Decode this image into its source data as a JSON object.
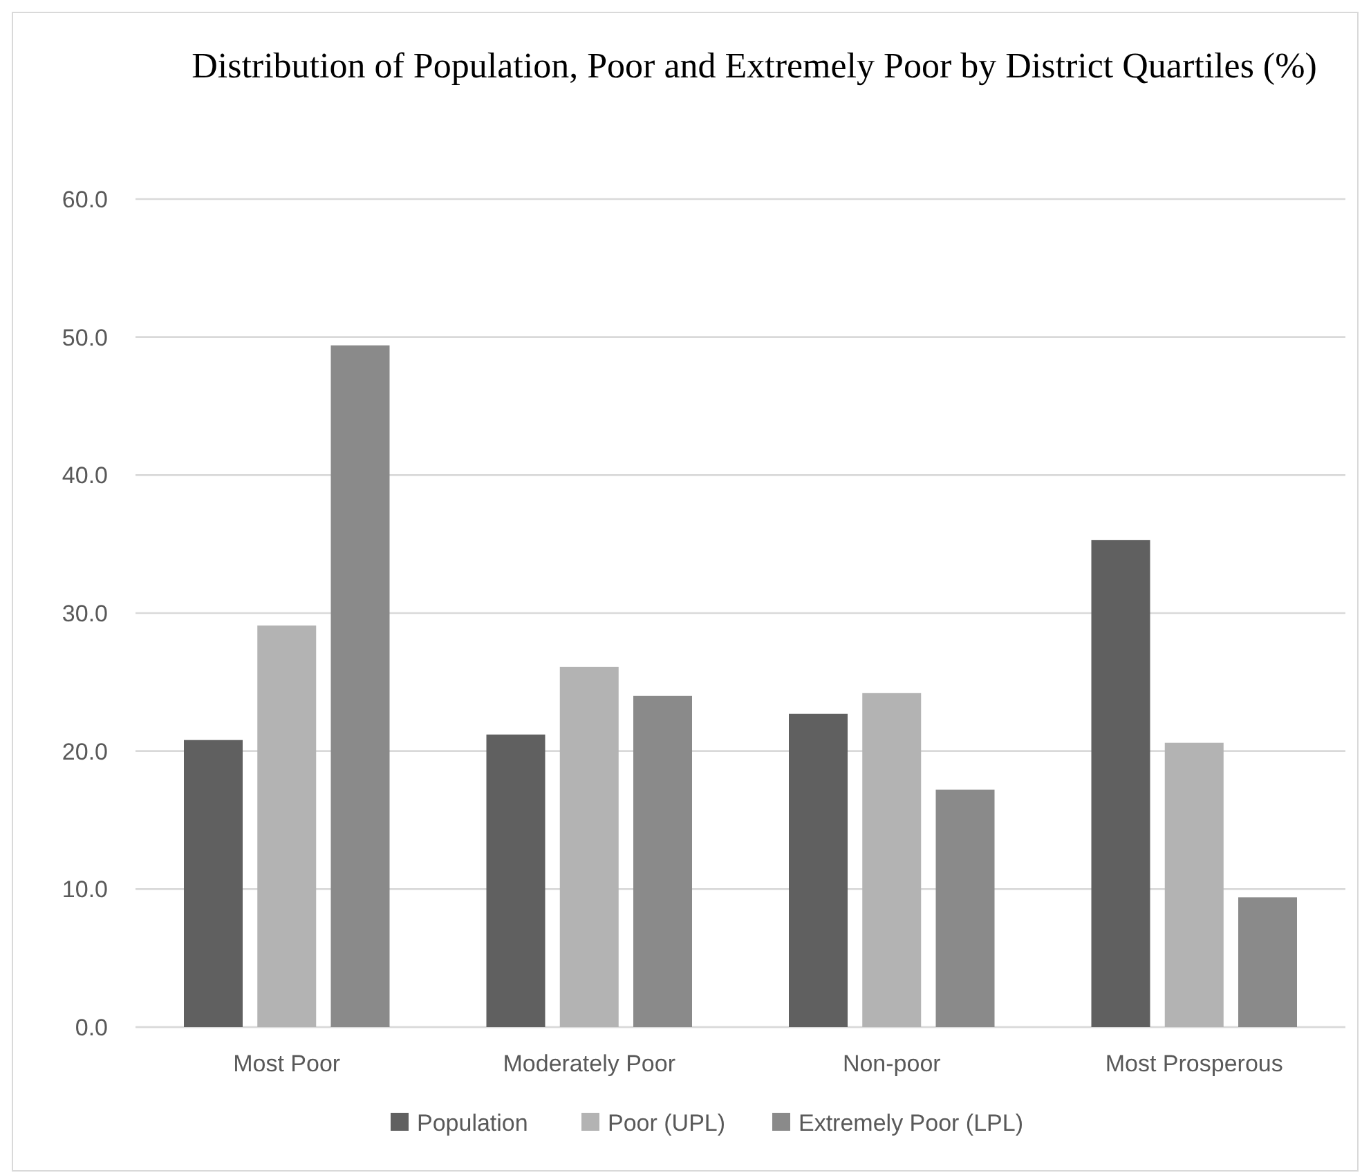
{
  "chart_data": {
    "type": "bar",
    "title": "Distribution of Population, Poor and Extremely Poor by District Quartiles (%)",
    "categories": [
      "Most Poor",
      "Moderately Poor",
      "Non-poor",
      "Most Prosperous"
    ],
    "series": [
      {
        "name": "Population",
        "color": "#606060",
        "values": [
          20.8,
          21.2,
          22.7,
          35.3
        ]
      },
      {
        "name": "Poor (UPL)",
        "color": "#b3b3b3",
        "values": [
          29.1,
          26.1,
          24.2,
          20.6
        ]
      },
      {
        "name": "Extremely Poor (LPL)",
        "color": "#8a8a8a",
        "values": [
          49.4,
          24.0,
          17.2,
          9.4
        ]
      }
    ],
    "ylim": [
      0,
      60
    ],
    "yticks": [
      {
        "value": 0,
        "label": "0.0"
      },
      {
        "value": 10,
        "label": "10.0"
      },
      {
        "value": 20,
        "label": "20.0"
      },
      {
        "value": 30,
        "label": "30.0"
      },
      {
        "value": 40,
        "label": "40.0"
      },
      {
        "value": 50,
        "label": "50.0"
      },
      {
        "value": 60,
        "label": "60.0"
      }
    ],
    "grid": "y",
    "legend": "bottom"
  }
}
